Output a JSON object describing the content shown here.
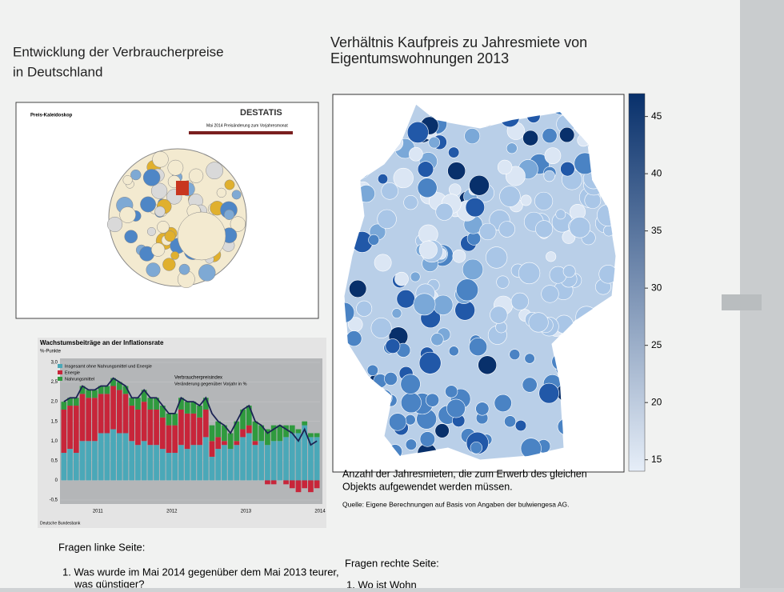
{
  "left_title": [
    "Entwicklung der Verbraucherpreise",
    "in Deutschland"
  ],
  "right_title": [
    "Verhältnis Kaufpreis zu Jahresmiete von",
    "Eigentumswohnungen 2013"
  ],
  "kaleidoscope": {
    "title": "Preis-Kaleidoskop",
    "logo": "DESTATIS",
    "heading": "Mai 2014  Preisänderung zum Vorjahresmonat"
  },
  "bar_chart": {
    "type": "bar",
    "title": "Wachstumsbeiträge an der Inflationsrate",
    "unit": "%-Punkte",
    "ylim": [
      -0.5,
      3.0
    ],
    "yticks": [
      {
        "value": -0.5,
        "label": "-0,5"
      },
      0,
      {
        "value": 0.5,
        "label": "0,5"
      },
      {
        "value": 1.0,
        "label": "1,0"
      },
      {
        "value": 1.5,
        "label": "1,5"
      },
      {
        "value": 2.0,
        "label": "2,0"
      },
      {
        "value": 2.5,
        "label": "2,5"
      },
      {
        "value": 3.0,
        "label": "3,0"
      }
    ],
    "year_labels": [
      "2011",
      "2012",
      "2013",
      "2014"
    ],
    "series": [
      {
        "name": "Insgesamt ohne Nahrungsmittel und Energie",
        "color": "#4aa8b8",
        "values": [
          0.7,
          0.8,
          0.7,
          1.0,
          1.0,
          1.0,
          1.2,
          1.2,
          1.3,
          1.2,
          1.2,
          1.0,
          0.9,
          1.0,
          0.9,
          0.9,
          0.8,
          0.7,
          0.7,
          0.9,
          0.8,
          0.9,
          0.9,
          1.1,
          0.6,
          0.8,
          0.9,
          0.8,
          0.9,
          1.1,
          1.2,
          0.9,
          1.0,
          0.9,
          1.0,
          1.0,
          1.1,
          1.2,
          1.2,
          1.4,
          1.1,
          1.1
        ]
      },
      {
        "name": "Energie",
        "color": "#c8253a",
        "values": [
          1.1,
          1.1,
          1.2,
          1.2,
          1.1,
          1.1,
          1.0,
          1.0,
          1.1,
          1.1,
          1.0,
          0.9,
          0.9,
          1.0,
          0.9,
          0.9,
          0.8,
          0.7,
          0.7,
          0.9,
          0.9,
          0.8,
          0.7,
          0.7,
          0.4,
          0.3,
          0.1,
          0.0,
          0.1,
          0.2,
          0.2,
          0.1,
          0.0,
          -0.1,
          -0.1,
          0.0,
          -0.1,
          -0.2,
          -0.3,
          -0.2,
          -0.3,
          -0.2
        ]
      },
      {
        "name": "Nahrungsmittel",
        "color": "#2f9a3e",
        "values": [
          0.2,
          0.2,
          0.2,
          0.2,
          0.2,
          0.2,
          0.2,
          0.2,
          0.2,
          0.2,
          0.2,
          0.2,
          0.3,
          0.3,
          0.3,
          0.3,
          0.3,
          0.3,
          0.3,
          0.3,
          0.3,
          0.3,
          0.3,
          0.3,
          0.4,
          0.4,
          0.4,
          0.4,
          0.5,
          0.5,
          0.5,
          0.5,
          0.4,
          0.4,
          0.4,
          0.4,
          0.3,
          0.2,
          0.1,
          0.1,
          0.1,
          0.1
        ]
      }
    ],
    "line": {
      "name": "Verbraucherpreisindex",
      "note": "Veränderung gegenüber Vorjahr in %",
      "color": "#1c2454",
      "values": [
        2.0,
        2.1,
        2.1,
        2.4,
        2.3,
        2.3,
        2.4,
        2.4,
        2.6,
        2.5,
        2.4,
        2.1,
        2.1,
        2.3,
        2.1,
        2.1,
        1.9,
        1.7,
        1.7,
        2.1,
        2.0,
        2.0,
        1.9,
        2.1,
        1.7,
        1.5,
        1.4,
        1.2,
        1.5,
        1.8,
        1.9,
        1.5,
        1.4,
        1.2,
        1.3,
        1.4,
        1.3,
        1.2,
        1.0,
        1.3,
        0.9,
        1.0
      ]
    },
    "source": "Deutsche Bundesbank"
  },
  "map": {
    "colorbar_lim": [
      14,
      47
    ],
    "colorbar_ticks": [
      15,
      20,
      25,
      30,
      35,
      40,
      45
    ],
    "colors": [
      "#e6eef8",
      "#08306b"
    ]
  },
  "caption": [
    "Anzahl der Jahresmieten, die zum Erwerb des gleichen",
    "Objekts aufgewendet werden müssen."
  ],
  "source": "Quelle: Eigene Berechnungen auf Basis von Angaben der bulwiengesa AG.",
  "questions_left": {
    "heading": "Fragen linke Seite:",
    "items": [
      "1. Was wurde im Mai 2014 gegenüber dem Mai 2013 teurer,",
      "was günstiger?"
    ]
  },
  "questions_right": {
    "heading": "Fragen rechte Seite:",
    "items": [
      "1. Wo ist Wohn"
    ]
  }
}
